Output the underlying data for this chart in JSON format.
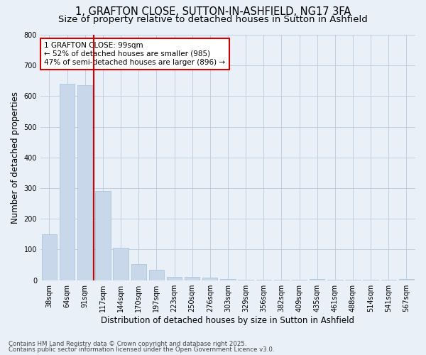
{
  "title1": "1, GRAFTON CLOSE, SUTTON-IN-ASHFIELD, NG17 3FA",
  "title2": "Size of property relative to detached houses in Sutton in Ashfield",
  "xlabel": "Distribution of detached houses by size in Sutton in Ashfield",
  "ylabel": "Number of detached properties",
  "categories": [
    "38sqm",
    "64sqm",
    "91sqm",
    "117sqm",
    "144sqm",
    "170sqm",
    "197sqm",
    "223sqm",
    "250sqm",
    "276sqm",
    "303sqm",
    "329sqm",
    "356sqm",
    "382sqm",
    "409sqm",
    "435sqm",
    "461sqm",
    "488sqm",
    "514sqm",
    "541sqm",
    "567sqm"
  ],
  "values": [
    150,
    640,
    635,
    290,
    105,
    52,
    35,
    12,
    12,
    8,
    5,
    1,
    1,
    1,
    1,
    4,
    1,
    1,
    1,
    1,
    4
  ],
  "bar_color": "#c8d8ea",
  "bar_edge_color": "#a8c0d6",
  "grid_color": "#c0cfe0",
  "background_color": "#eaf0f8",
  "vline_x": 2.5,
  "vline_color": "#cc0000",
  "annotation_text": "1 GRAFTON CLOSE: 99sqm\n← 52% of detached houses are smaller (985)\n47% of semi-detached houses are larger (896) →",
  "annotation_box_color": "#ffffff",
  "annotation_box_edge": "#cc0000",
  "ylim": [
    0,
    800
  ],
  "yticks": [
    0,
    100,
    200,
    300,
    400,
    500,
    600,
    700,
    800
  ],
  "footer1": "Contains HM Land Registry data © Crown copyright and database right 2025.",
  "footer2": "Contains public sector information licensed under the Open Government Licence v3.0.",
  "title_fontsize": 10.5,
  "subtitle_fontsize": 9.5,
  "tick_fontsize": 7,
  "ylabel_fontsize": 8.5,
  "xlabel_fontsize": 8.5,
  "footer_fontsize": 6.2
}
